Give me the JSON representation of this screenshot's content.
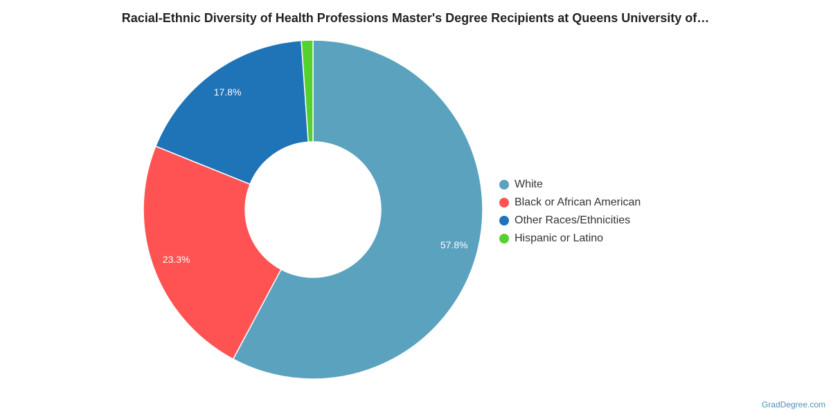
{
  "chart_data": {
    "type": "pie",
    "title": "Racial-Ethnic Diversity of Health Professions Master's Degree Recipients at Queens University of…",
    "variant": "donut",
    "legend_position": "right",
    "slices": [
      {
        "name": "White",
        "value": 57.8,
        "label": "57.8%",
        "color": "#5ba2bf"
      },
      {
        "name": "Black or African American",
        "value": 23.3,
        "label": "23.3%",
        "color": "#ff5353"
      },
      {
        "name": "Other Races/Ethnicities",
        "value": 17.8,
        "label": "17.8%",
        "color": "#1f73b7"
      },
      {
        "name": "Hispanic or Latino",
        "value": 1.1,
        "label": "",
        "color": "#55d12e"
      }
    ]
  },
  "credit": "GradDegree.com"
}
